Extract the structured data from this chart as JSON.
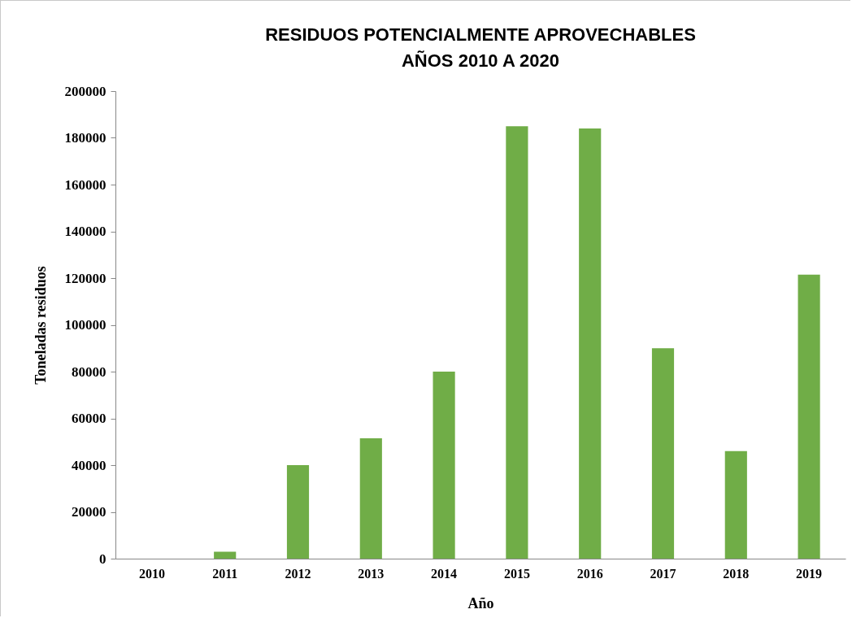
{
  "chart_data": {
    "type": "bar",
    "title": "RESIDUOS POTENCIALMENTE APROVECHABLES\nAÑOS 2010 A 2020",
    "xlabel": "Año",
    "ylabel": "Toneladas  residuos",
    "categories": [
      "2010",
      "2011",
      "2012",
      "2013",
      "2014",
      "2015",
      "2016",
      "2017",
      "2018",
      "2019"
    ],
    "values": [
      0,
      3000,
      40000,
      51500,
      80000,
      185000,
      184000,
      90000,
      46000,
      121500
    ],
    "color": "#70ad47",
    "ylim": [
      0,
      200000
    ],
    "yticks": [
      0,
      20000,
      40000,
      60000,
      80000,
      100000,
      120000,
      140000,
      160000,
      180000,
      200000
    ],
    "grid": false
  }
}
